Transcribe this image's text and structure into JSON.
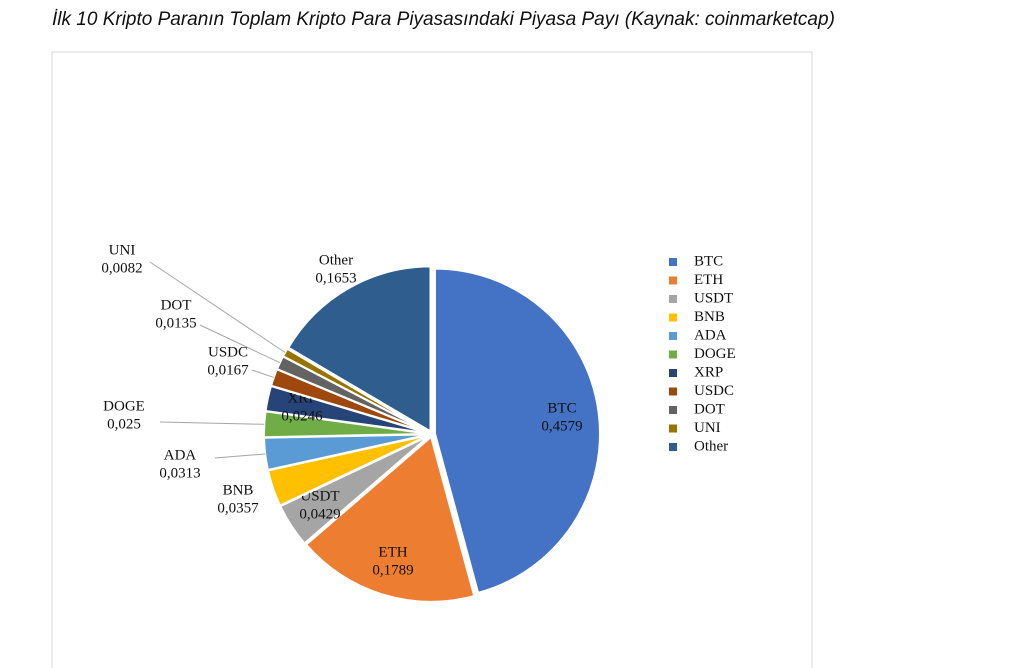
{
  "chart_data": {
    "type": "pie",
    "title": "İlk 10 Kripto Paranın Toplam Kripto Para Piyasasındaki Piyasa Payı (Kaynak: coinmarketcap)",
    "categories": [
      "BTC",
      "ETH",
      "USDT",
      "BNB",
      "ADA",
      "DOGE",
      "XRP",
      "USDC",
      "DOT",
      "UNI",
      "Other"
    ],
    "values": [
      0.4579,
      0.1789,
      0.0429,
      0.0357,
      0.0313,
      0.025,
      0.0246,
      0.0167,
      0.0135,
      0.0082,
      0.1653
    ],
    "value_labels": [
      "0,4579",
      "0,1789",
      "0,0429",
      "0,0357",
      "0,0313",
      "0,025",
      "0,0246",
      "0,0167",
      "0,0135",
      "0,0082",
      "0,1653"
    ],
    "colors": [
      "#4472c4",
      "#ed7d31",
      "#a5a5a5",
      "#ffc000",
      "#5b9bd5",
      "#70ad47",
      "#264478",
      "#9e480e",
      "#636363",
      "#997300",
      "#2f5e8e"
    ],
    "legend": "right"
  }
}
